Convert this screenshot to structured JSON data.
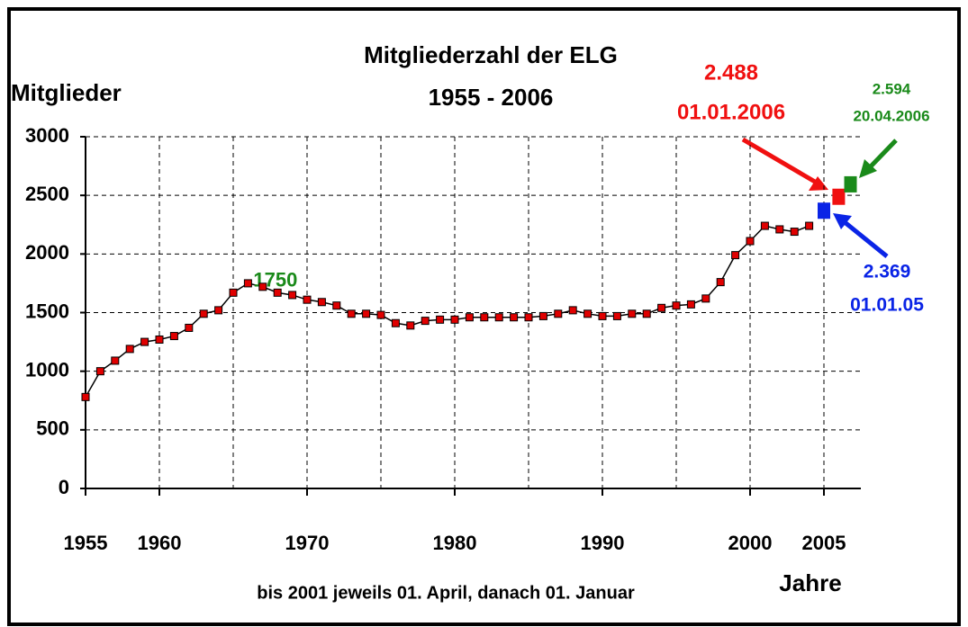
{
  "chart_data": {
    "type": "line",
    "title": "Mitgliederzahl der ELG",
    "subtitle": "1955 - 2006",
    "y_label": "Mitglieder",
    "x_label": "Jahre",
    "note": "bis  2001 jeweils  01. April, danach  01. Januar",
    "xlim": [
      1955,
      2007.5
    ],
    "xticks": [
      1955,
      1960,
      1970,
      1980,
      1990,
      2000,
      2005
    ],
    "xgrid": [
      1960,
      1965,
      1970,
      1975,
      1980,
      1985,
      1990,
      1995,
      2000,
      2005
    ],
    "ylim": [
      0,
      3000
    ],
    "yticks": [
      0,
      500,
      1000,
      1500,
      2000,
      2500,
      3000
    ],
    "grid": true,
    "series": [
      {
        "color": "#e00000",
        "x": [
          1955,
          1956,
          1957,
          1958,
          1959,
          1960,
          1961,
          1962,
          1963,
          1964,
          1965,
          1966,
          1967,
          1968,
          1969,
          1970,
          1971,
          1972,
          1973,
          1974,
          1975,
          1976,
          1977,
          1978,
          1979,
          1980,
          1981,
          1982,
          1983,
          1984,
          1985,
          1986,
          1987,
          1988,
          1989,
          1990,
          1991,
          1992,
          1993,
          1994,
          1995,
          1996,
          1997,
          1998,
          1999,
          2000,
          2001,
          2002,
          2003,
          2004
        ],
        "values": [
          780,
          1000,
          1090,
          1190,
          1250,
          1270,
          1300,
          1370,
          1490,
          1520,
          1670,
          1750,
          1720,
          1670,
          1650,
          1610,
          1590,
          1560,
          1490,
          1490,
          1480,
          1410,
          1390,
          1430,
          1440,
          1440,
          1460,
          1460,
          1460,
          1460,
          1460,
          1470,
          1490,
          1520,
          1490,
          1470,
          1470,
          1490,
          1490,
          1540,
          1560,
          1570,
          1620,
          1760,
          1990,
          2110,
          2240,
          2210,
          2190,
          2240
        ],
        "value_labels": [
          null,
          null,
          null,
          null,
          null,
          null,
          null,
          null,
          null,
          null,
          null,
          "1750",
          null,
          null,
          null,
          null,
          null,
          null,
          null,
          null,
          null,
          null,
          null,
          null,
          null,
          null,
          null,
          null,
          null,
          null,
          null,
          null,
          null,
          null,
          null,
          null,
          null,
          null,
          null,
          null,
          null,
          null,
          null,
          null,
          null,
          null,
          null,
          null,
          null,
          null
        ]
      }
    ],
    "highlights": [
      {
        "x": 2005,
        "value": 2369,
        "value_label": "2.369",
        "date": "01.01.05",
        "color": "#0a24e6"
      },
      {
        "x": 2006,
        "value": 2488,
        "value_label": "2.488",
        "date": "01.01.2006",
        "color": "#f01010"
      },
      {
        "x": 2006.8,
        "value": 2594,
        "value_label": "2.594",
        "date": "20.04.2006",
        "color": "#1a8a1a"
      }
    ]
  }
}
